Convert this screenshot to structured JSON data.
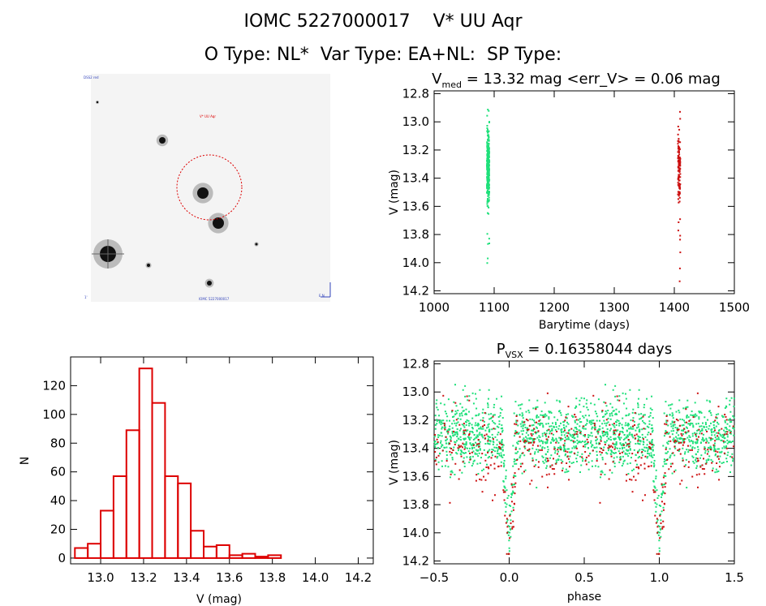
{
  "header": {
    "line1": "IOMC 5227000017    V* UU Aqr",
    "line2": "O Type: NL*  Var Type: EA+NL:  SP Type:"
  },
  "finder": {
    "caption_top_left": "DSS2 red",
    "target_label": "V* UU Aqr",
    "caption_bottom": "IOMC 5227000017",
    "caption_bottom_left": "1'",
    "caption_bottom_right": "E  N"
  },
  "chart_data": [
    {
      "type": "scatter",
      "id": "lightcurve",
      "title_main": "V",
      "title_sub": "med",
      "title_rest": " = 13.32 mag <err_V> = 0.06 mag",
      "xlabel": "Barytime (days)",
      "ylabel": "V (mag)",
      "xlim": [
        1000,
        1500
      ],
      "ylim": [
        14.22,
        12.78
      ],
      "xticks": [
        "1000",
        "1100",
        "1200",
        "1300",
        "1400",
        "1500"
      ],
      "yticks": [
        "12.8",
        "13.0",
        "13.2",
        "13.4",
        "13.6",
        "13.8",
        "14.0",
        "14.2"
      ],
      "series": [
        {
          "color": "#1ee07a",
          "x_center": 1090,
          "ymin": 12.88,
          "ymax": 14.05,
          "count": 360
        },
        {
          "color": "#cc1111",
          "x_center": 1408,
          "ymin": 12.9,
          "ymax": 14.15,
          "count": 120
        }
      ]
    },
    {
      "type": "scatter",
      "id": "phased",
      "title_main": "P",
      "title_sub": "VSX",
      "title_rest": " = 0.16358044 days",
      "xlabel": "phase",
      "ylabel": "V (mag)",
      "xlim": [
        -0.5,
        1.5
      ],
      "ylim": [
        14.22,
        12.78
      ],
      "xticks": [
        "−0.5",
        "0.0",
        "0.5",
        "1.0",
        "1.5"
      ],
      "yticks": [
        "12.8",
        "13.0",
        "13.2",
        "13.4",
        "13.6",
        "13.8",
        "14.0",
        "14.2"
      ],
      "series": [
        {
          "color": "#1ee07a",
          "count": 900
        },
        {
          "color": "#cc1111",
          "count": 240
        }
      ]
    },
    {
      "type": "bar",
      "id": "histogram",
      "xlabel": "V (mag)",
      "ylabel": "N",
      "xlim": [
        12.86,
        14.27
      ],
      "ylim": [
        -4,
        140
      ],
      "xticks": [
        "13.0",
        "13.2",
        "13.4",
        "13.6",
        "13.8",
        "14.0",
        "14.2"
      ],
      "yticks": [
        "0",
        "20",
        "40",
        "60",
        "80",
        "100",
        "120"
      ],
      "bin_width": 0.06,
      "bin_starts": [
        12.88,
        12.94,
        13.0,
        13.06,
        13.12,
        13.18,
        13.24,
        13.3,
        13.36,
        13.42,
        13.48,
        13.54,
        13.6,
        13.66,
        13.72,
        13.78,
        13.84,
        13.9,
        13.96,
        14.02
      ],
      "values": [
        7,
        10,
        33,
        57,
        89,
        132,
        108,
        57,
        52,
        19,
        8,
        9,
        2,
        3,
        1,
        2,
        0,
        0,
        0,
        0
      ],
      "color": "#dd0000"
    }
  ]
}
